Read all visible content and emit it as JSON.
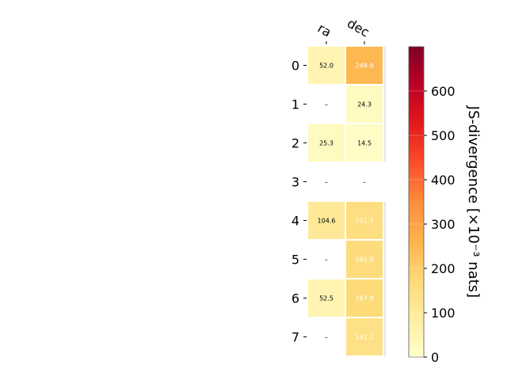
{
  "chart_data": {
    "type": "heatmap",
    "columns": [
      "ra",
      "dec"
    ],
    "rows": [
      "0",
      "1",
      "2",
      "3",
      "4",
      "5",
      "6",
      "7"
    ],
    "values": [
      [
        52.0,
        249.9
      ],
      [
        null,
        24.3
      ],
      [
        25.3,
        14.5
      ],
      [
        null,
        null
      ],
      [
        104.6,
        151.7
      ],
      [
        null,
        161.9
      ],
      [
        52.5,
        167.9
      ],
      [
        null,
        141.1
      ]
    ],
    "cell_labels": [
      [
        "52.0",
        "249.9"
      ],
      [
        "–",
        "24.3"
      ],
      [
        "25.3",
        "14.5"
      ],
      [
        "–",
        "–"
      ],
      [
        "104.6",
        "151.7"
      ],
      [
        "–",
        "161.9"
      ],
      [
        "52.5",
        "167.9"
      ],
      [
        "–",
        "141.1"
      ]
    ],
    "colorbar": {
      "label": "JS-divergence [×10⁻³ nats]",
      "range": [
        0,
        700
      ],
      "ticks": [
        "0",
        "100",
        "200",
        "300",
        "400",
        "500",
        "600"
      ],
      "colormap": "YlOrRd",
      "colors": [
        "#ffffcc",
        "#ffeda0",
        "#fed976",
        "#feb24c",
        "#fd8d3c",
        "#fc4e2a",
        "#e31a1c",
        "#bd0026",
        "#800026"
      ]
    },
    "grid": false
  }
}
